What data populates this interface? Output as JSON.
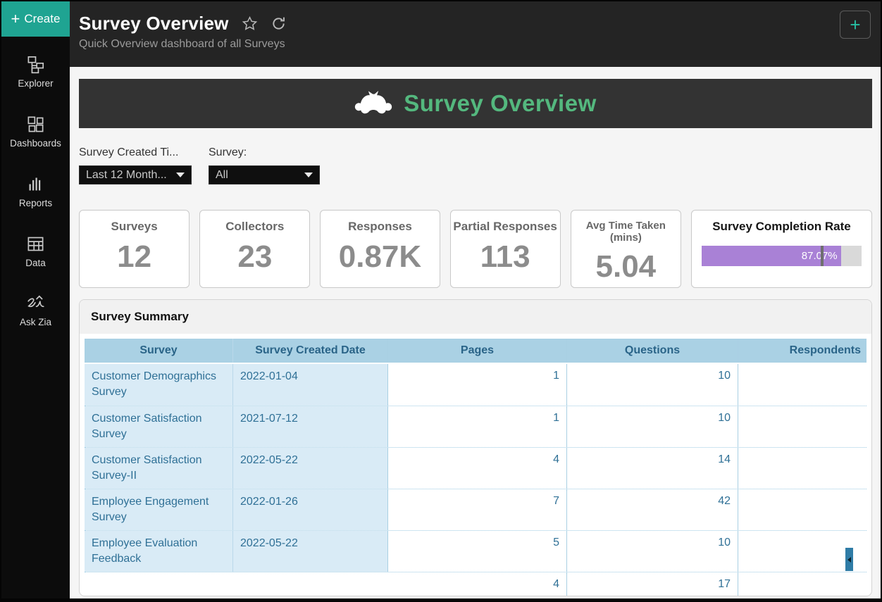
{
  "sidebar": {
    "create": {
      "plus": "+",
      "label": "Create"
    },
    "items": [
      {
        "label": "Explorer",
        "icon": "hierarchy-icon"
      },
      {
        "label": "Dashboards",
        "icon": "grid-icon"
      },
      {
        "label": "Reports",
        "icon": "bar-chart-icon"
      },
      {
        "label": "Data",
        "icon": "table-icon"
      },
      {
        "label": "Ask Zia",
        "icon": "zia-icon"
      }
    ]
  },
  "header": {
    "title": "Survey Overview",
    "subtitle": "Quick Overview dashboard of all Surveys",
    "plus": "+"
  },
  "banner": {
    "title": "Survey Overview",
    "logo": "surveymonkey-logo"
  },
  "filters": [
    {
      "label": "Survey Created Ti...",
      "value": "Last 12 Month..."
    },
    {
      "label": "Survey:",
      "value": "All"
    }
  ],
  "kpis": [
    {
      "label": "Surveys",
      "value": "12"
    },
    {
      "label": "Collectors",
      "value": "23"
    },
    {
      "label": "Responses",
      "value": "0.87K"
    },
    {
      "label": "Partial Responses",
      "value": "113"
    },
    {
      "label": "Avg Time Taken (mins)",
      "value": "5.04"
    },
    {
      "label": "Survey Completion Rate",
      "type": "progress",
      "value": "87.07%",
      "percent": 87.07,
      "marker_percent": 74.5
    }
  ],
  "summary": {
    "title": "Survey Summary",
    "columns": [
      "Survey",
      "Survey Created Date",
      "Pages",
      "Questions",
      "Respondents"
    ],
    "rows": [
      {
        "survey": "Customer Demographics Survey",
        "date": "2022-01-04",
        "pages": "1",
        "questions": "10",
        "respondents": "",
        "partial": false
      },
      {
        "survey": "Customer Satisfaction Survey",
        "date": "2021-07-12",
        "pages": "1",
        "questions": "10",
        "respondents": "",
        "partial": false
      },
      {
        "survey": "Customer Satisfaction Survey-II",
        "date": "2022-05-22",
        "pages": "4",
        "questions": "14",
        "respondents": "",
        "partial": false
      },
      {
        "survey": "Employee Engagement Survey",
        "date": "2022-01-26",
        "pages": "7",
        "questions": "42",
        "respondents": "",
        "partial": false
      },
      {
        "survey": "Employee Evaluation Feedback",
        "date": "2022-05-22",
        "pages": "5",
        "questions": "10",
        "respondents": "",
        "partial": false
      },
      {
        "survey": "",
        "date": "",
        "pages": "4",
        "questions": "17",
        "respondents": "",
        "partial": true
      }
    ]
  },
  "colors": {
    "accent_teal": "#1fa492",
    "banner_green": "#54b87e",
    "banner_bg": "#333333",
    "topbar_bg": "#242424",
    "sidebar_bg": "#0c0c0c",
    "progress_purple": "#a981d6",
    "progress_track": "#d9d9d9",
    "table_header_blue": "#aad1e4",
    "table_frozen_blue": "#d9ebf6",
    "table_text_blue": "#2f7096",
    "scroll_indicator_blue": "#2f7ca6"
  }
}
